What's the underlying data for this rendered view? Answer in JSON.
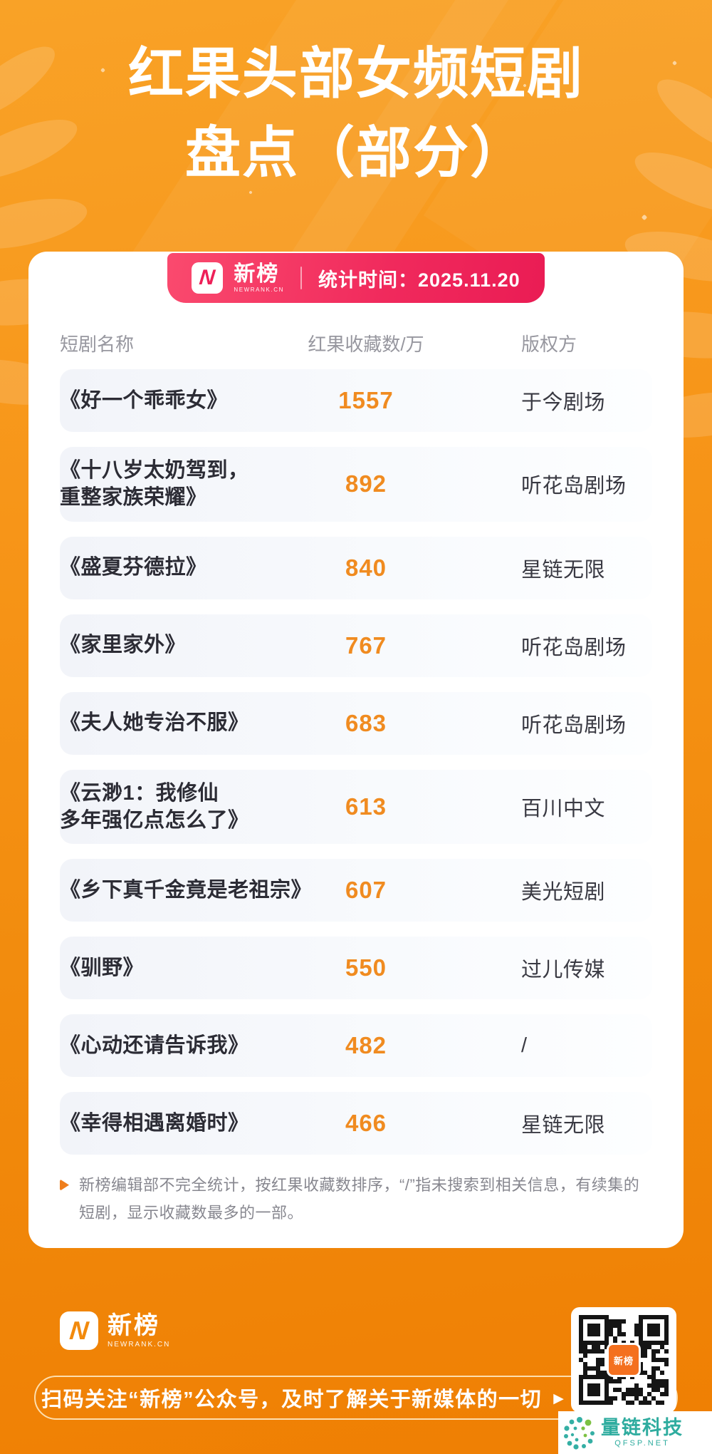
{
  "title": {
    "line1": "红果头部女频短剧",
    "line2": "盘点（部分）"
  },
  "badge": {
    "logo_letter": "N",
    "brand": "新榜",
    "brand_sub": "NEWRANK.CN",
    "stat": "统计时间：2025.11.20"
  },
  "table": {
    "headers": [
      "短剧名称",
      "红果收藏数/万",
      "版权方"
    ],
    "rows": [
      {
        "name": "《好一个乖乖女》",
        "count": "1557",
        "owner": "于今剧场"
      },
      {
        "name": "《十八岁太奶驾到，\n重整家族荣耀》",
        "count": "892",
        "owner": "听花岛剧场"
      },
      {
        "name": "《盛夏芬德拉》",
        "count": "840",
        "owner": "星链无限"
      },
      {
        "name": "《家里家外》",
        "count": "767",
        "owner": "听花岛剧场"
      },
      {
        "name": "《夫人她专治不服》",
        "count": "683",
        "owner": "听花岛剧场"
      },
      {
        "name": "《云渺1：我修仙\n多年强亿点怎么了》",
        "count": "613",
        "owner": "百川中文"
      },
      {
        "name": "《乡下真千金竟是老祖宗》",
        "count": "607",
        "owner": "美光短剧"
      },
      {
        "name": "《驯野》",
        "count": "550",
        "owner": "过儿传媒"
      },
      {
        "name": "《心动还请告诉我》",
        "count": "482",
        "owner": "/"
      },
      {
        "name": "《幸得相遇离婚时》",
        "count": "466",
        "owner": "星链无限"
      }
    ]
  },
  "footnote": {
    "text": "新榜编辑部不完全统计，按红果收藏数排序，“/”指未搜索到相关信息，有续集的短剧，显示收藏数最多的一部。"
  },
  "footer": {
    "logo_letter": "N",
    "brand": "新榜",
    "brand_sub": "NEWRANK.CN",
    "banner_text": "扫码关注“新榜”公众号，及时了解关于新媒体的一切",
    "banner_arrow": "▶",
    "qr_center_label": "新榜"
  },
  "watermark": {
    "name": "量链科技",
    "domain": "QFSP.NET"
  },
  "colors": {
    "background_orange": "#F28C0E",
    "badge_pink": "#EE2058",
    "count_orange": "#F08B20",
    "row_background": "#F2F4F9",
    "watermark_teal": "#2FAC9F"
  }
}
